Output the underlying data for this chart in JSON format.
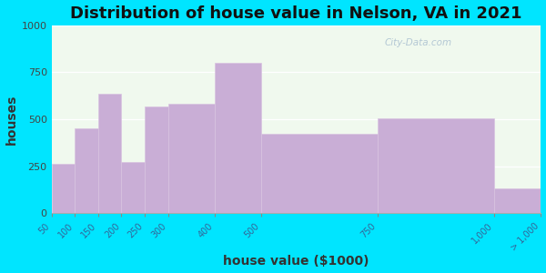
{
  "title": "Distribution of house value in Nelson, VA in 2021",
  "xlabel": "house value ($1000)",
  "ylabel": "houses",
  "bin_edges": [
    0,
    50,
    100,
    150,
    200,
    250,
    300,
    400,
    500,
    750,
    1000,
    1100
  ],
  "bar_values": [
    0,
    260,
    450,
    635,
    270,
    570,
    580,
    800,
    420,
    505,
    130,
    135
  ],
  "tick_positions": [
    50,
    100,
    150,
    200,
    250,
    300,
    400,
    500,
    750,
    1000,
    1100
  ],
  "tick_labels": [
    "50",
    "100",
    "150",
    "200",
    "250",
    "300",
    "400",
    "500",
    "750",
    "1,000",
    "> 1,000"
  ],
  "bar_color": "#c9aed6",
  "bar_edgecolor": "#d8c4e0",
  "bg_color_outer": "#00e5ff",
  "bg_color_inner": "#f0f9ee",
  "ylim": [
    0,
    1000
  ],
  "yticks": [
    0,
    250,
    500,
    750,
    1000
  ],
  "xlim_left": 50,
  "xlim_right": 1100,
  "title_fontsize": 13,
  "axis_label_fontsize": 10,
  "watermark_text": "City-Data.com"
}
